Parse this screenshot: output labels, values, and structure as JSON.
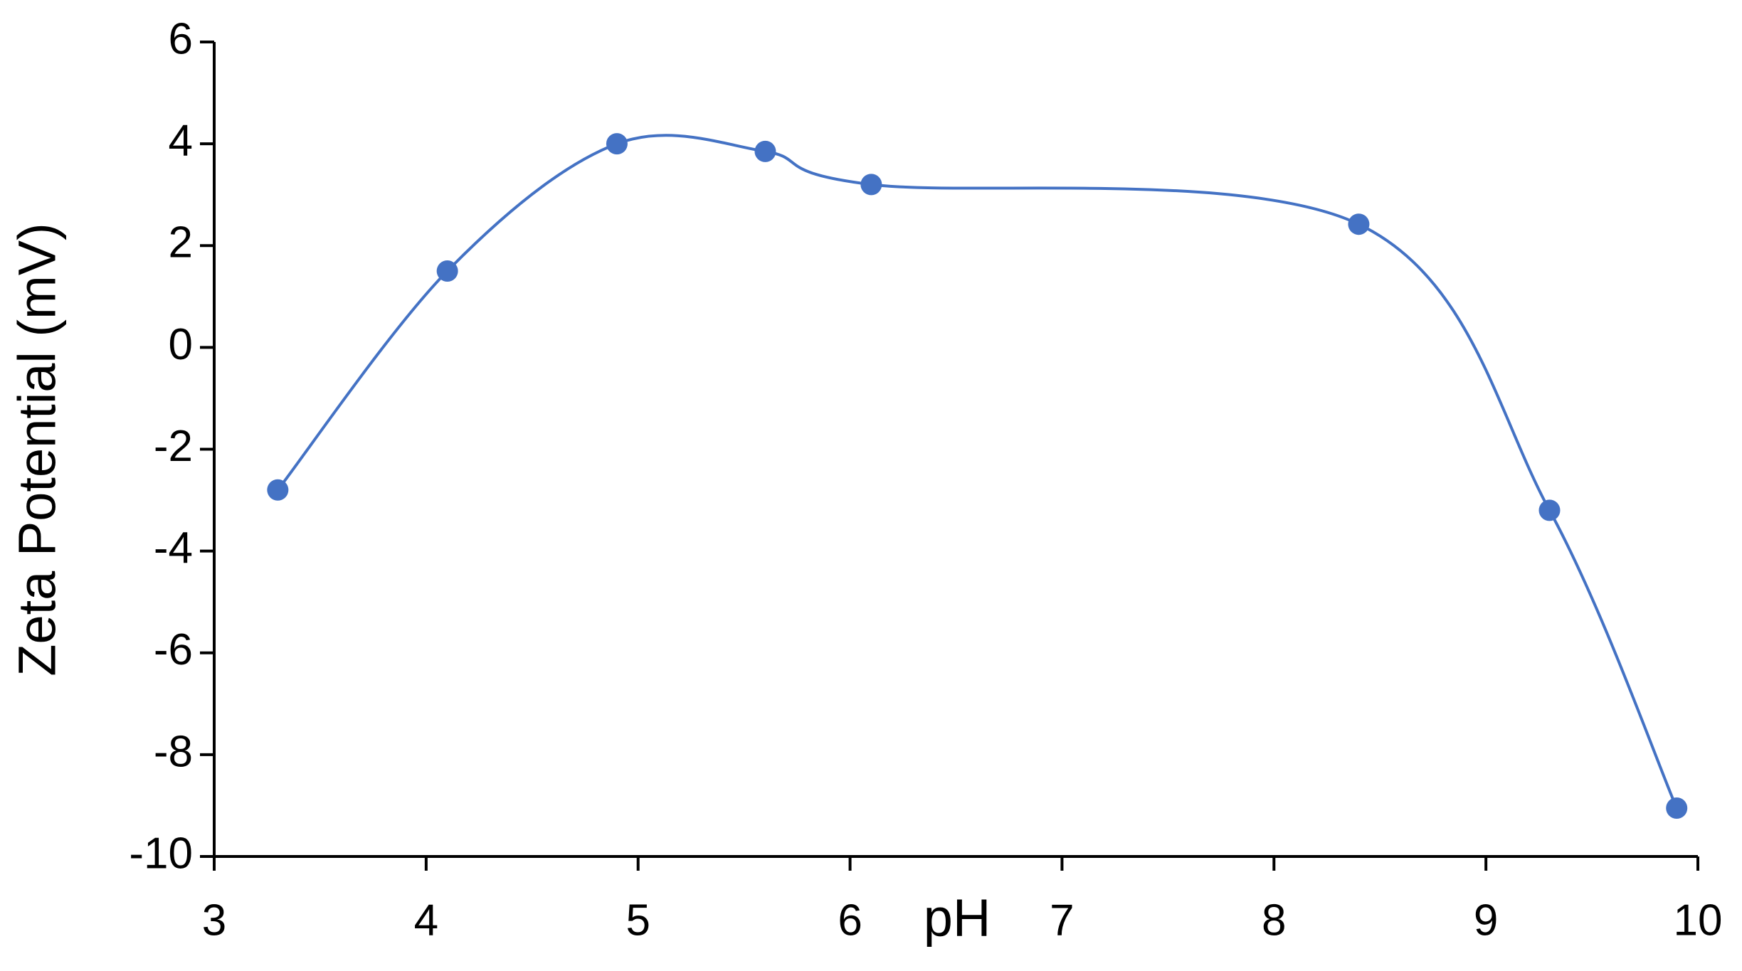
{
  "chart_data": {
    "type": "line",
    "x_label": "pH",
    "y_label": "Zeta Potential (mV)",
    "x": [
      3.3,
      4.1,
      4.9,
      5.6,
      6.1,
      8.4,
      9.3,
      9.9
    ],
    "series": [
      {
        "name": "Zeta Potential",
        "color": "#4472c4",
        "values": [
          -2.8,
          1.5,
          4.0,
          3.85,
          3.2,
          2.42,
          -3.2,
          -9.05
        ]
      }
    ],
    "xlim": [
      3,
      10
    ],
    "xticks": [
      3,
      4,
      5,
      6,
      7,
      8,
      9,
      10
    ],
    "ylim": [
      -10,
      6
    ],
    "yticks": [
      -10,
      -8,
      -6,
      -4,
      -2,
      0,
      2,
      4,
      6
    ],
    "smooth": true,
    "markers": true,
    "grid": false
  }
}
